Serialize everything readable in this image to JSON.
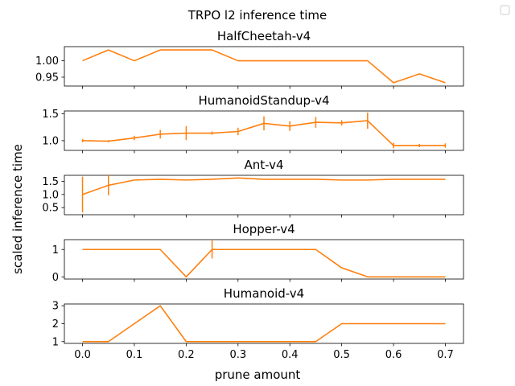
{
  "figure": {
    "title": "TRPO l2 inference time",
    "ylabel": "scaled inference time",
    "xlabel": "prune amount",
    "x_ticks": [
      "0.0",
      "0.1",
      "0.2",
      "0.3",
      "0.4",
      "0.5",
      "0.6",
      "0.7"
    ],
    "line_color": "#ff7f0e",
    "err_color": "#ff7f0e"
  },
  "chart_data": [
    {
      "type": "line",
      "title": "HalfCheetah-v4",
      "x": [
        0.0,
        0.05,
        0.1,
        0.15,
        0.2,
        0.25,
        0.3,
        0.35,
        0.4,
        0.45,
        0.5,
        0.55,
        0.6,
        0.65,
        0.7
      ],
      "y": [
        1.0,
        1.033,
        1.0,
        1.033,
        1.033,
        1.033,
        1.0,
        1.0,
        1.0,
        1.0,
        1.0,
        1.0,
        0.933,
        0.96,
        0.933
      ],
      "err": [],
      "ylim": [
        0.923,
        1.043
      ],
      "yticks": [
        {
          "v": 0.95,
          "label": "0.95"
        },
        {
          "v": 1.0,
          "label": "1.00"
        }
      ]
    },
    {
      "type": "line",
      "title": "HumanoidStandup-v4",
      "x": [
        0.0,
        0.05,
        0.1,
        0.15,
        0.2,
        0.25,
        0.3,
        0.35,
        0.4,
        0.45,
        0.5,
        0.55,
        0.6,
        0.65,
        0.7
      ],
      "y": [
        1.0,
        0.99,
        1.05,
        1.12,
        1.14,
        1.14,
        1.17,
        1.32,
        1.27,
        1.34,
        1.33,
        1.37,
        0.91,
        0.91,
        0.91
      ],
      "err": [
        0.03,
        0.02,
        0.04,
        0.08,
        0.13,
        0.03,
        0.07,
        0.13,
        0.09,
        0.1,
        0.05,
        0.15,
        0.05,
        0.03,
        0.04
      ],
      "ylim": [
        0.82,
        1.55
      ],
      "yticks": [
        {
          "v": 1.0,
          "label": "1.0"
        },
        {
          "v": 1.5,
          "label": "1.5"
        }
      ]
    },
    {
      "type": "line",
      "title": "Ant-v4",
      "x": [
        0.0,
        0.05,
        0.1,
        0.15,
        0.2,
        0.25,
        0.3,
        0.35,
        0.4,
        0.45,
        0.5,
        0.55,
        0.6,
        0.65,
        0.7
      ],
      "y": [
        1.0,
        1.35,
        1.55,
        1.58,
        1.55,
        1.58,
        1.63,
        1.58,
        1.58,
        1.58,
        1.55,
        1.55,
        1.58,
        1.58,
        1.58
      ],
      "err": [
        0.68,
        0.38,
        0.0,
        0.0,
        0.0,
        0.0,
        0.0,
        0.0,
        0.0,
        0.0,
        0.0,
        0.0,
        0.0,
        0.0,
        0.0
      ],
      "ylim": [
        0.23,
        1.73
      ],
      "yticks": [
        {
          "v": 0.5,
          "label": "0.5"
        },
        {
          "v": 1.0,
          "label": "1.0"
        },
        {
          "v": 1.5,
          "label": "1.5"
        }
      ]
    },
    {
      "type": "line",
      "title": "Hopper-v4",
      "x": [
        0.0,
        0.05,
        0.1,
        0.15,
        0.2,
        0.25,
        0.3,
        0.35,
        0.4,
        0.45,
        0.5,
        0.55,
        0.6,
        0.65,
        0.7
      ],
      "y": [
        1.0,
        1.0,
        1.0,
        1.0,
        0.0,
        1.0,
        1.0,
        1.0,
        1.0,
        1.0,
        0.33,
        0.0,
        0.0,
        0.0,
        0.0
      ],
      "err": [
        0.0,
        0.0,
        0.0,
        0.0,
        0.0,
        0.33,
        0.0,
        0.0,
        0.0,
        0.0,
        0.0,
        0.0,
        0.0,
        0.0,
        0.0
      ],
      "ylim": [
        -0.08,
        1.36
      ],
      "yticks": [
        {
          "v": 0,
          "label": "0"
        },
        {
          "v": 1,
          "label": "1"
        }
      ]
    },
    {
      "type": "line",
      "title": "Humanoid-v4",
      "x": [
        0.0,
        0.05,
        0.1,
        0.15,
        0.2,
        0.25,
        0.3,
        0.35,
        0.4,
        0.45,
        0.5,
        0.55,
        0.6,
        0.65,
        0.7
      ],
      "y": [
        1.0,
        1.0,
        2.0,
        3.0,
        1.0,
        1.0,
        1.0,
        1.0,
        1.0,
        1.0,
        2.0,
        2.0,
        2.0,
        2.0,
        2.0
      ],
      "err": [],
      "ylim": [
        0.9,
        3.1
      ],
      "yticks": [
        {
          "v": 1,
          "label": "1"
        },
        {
          "v": 2,
          "label": "2"
        },
        {
          "v": 3,
          "label": "3"
        }
      ]
    }
  ]
}
